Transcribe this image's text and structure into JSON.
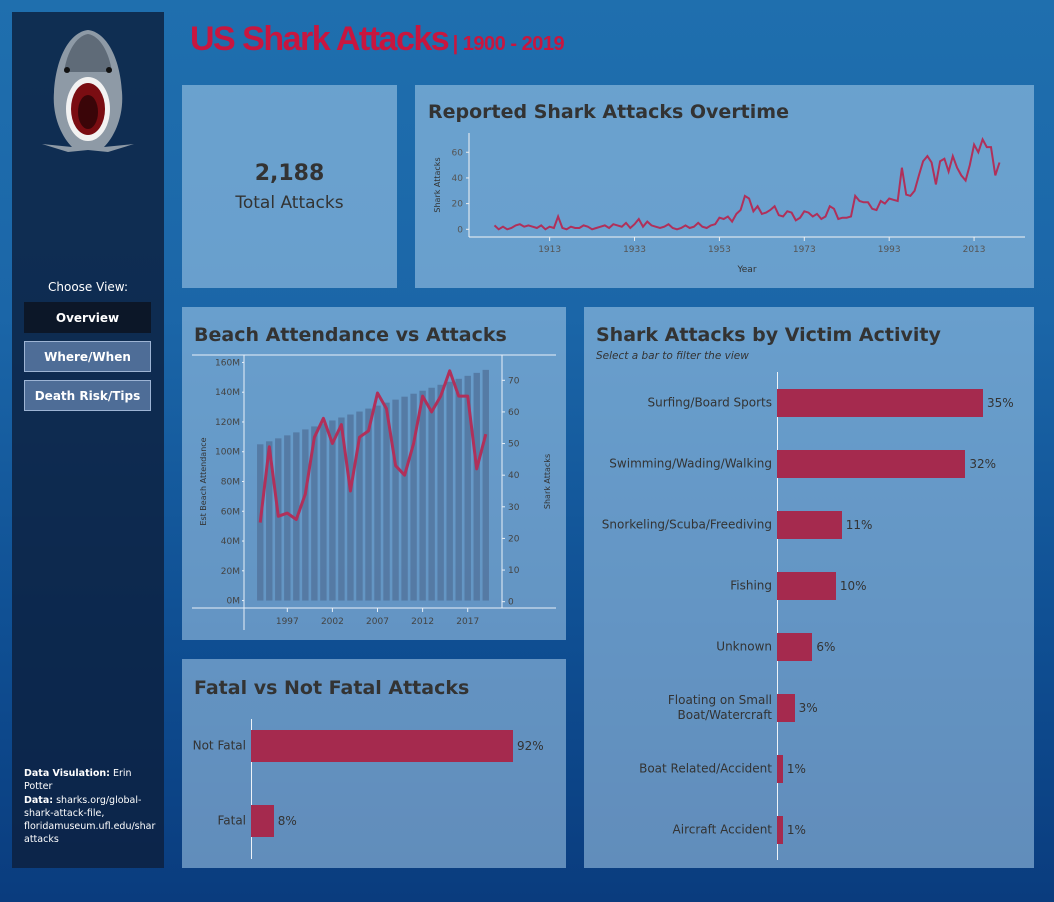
{
  "header": {
    "title": "US Shark Attacks",
    "subtitle": "| 1900 - 2019"
  },
  "sidebar": {
    "prompt": "Choose View:",
    "buttons": [
      "Overview",
      "Where/When",
      "Death Risk/Tips"
    ],
    "credits": [
      {
        "label": "Data Visulation:",
        "text": "Erin Potter"
      },
      {
        "label": "Data:",
        "text": "sharks.org/global-shark-attack-file, floridamuseum.ufl.edu/shar attacks"
      }
    ]
  },
  "kpi": {
    "value": "2,188",
    "label": "Total Attacks"
  },
  "chart_data": [
    {
      "type": "line",
      "title": "Reported Shark Attacks Overtime",
      "x_label": "Year",
      "y_label": "Shark Attacks",
      "x": [
        1900,
        1901,
        1902,
        1903,
        1904,
        1905,
        1906,
        1907,
        1908,
        1909,
        1910,
        1911,
        1912,
        1913,
        1914,
        1915,
        1916,
        1917,
        1918,
        1919,
        1920,
        1921,
        1922,
        1923,
        1924,
        1925,
        1926,
        1927,
        1928,
        1929,
        1930,
        1931,
        1932,
        1933,
        1934,
        1935,
        1936,
        1937,
        1938,
        1939,
        1940,
        1941,
        1942,
        1943,
        1944,
        1945,
        1946,
        1947,
        1948,
        1949,
        1950,
        1951,
        1952,
        1953,
        1954,
        1955,
        1956,
        1957,
        1958,
        1959,
        1960,
        1961,
        1962,
        1963,
        1964,
        1965,
        1966,
        1967,
        1968,
        1969,
        1970,
        1971,
        1972,
        1973,
        1974,
        1975,
        1976,
        1977,
        1978,
        1979,
        1980,
        1981,
        1982,
        1983,
        1984,
        1985,
        1986,
        1987,
        1988,
        1989,
        1990,
        1991,
        1992,
        1993,
        1994,
        1995,
        1996,
        1997,
        1998,
        1999,
        2000,
        2001,
        2002,
        2003,
        2004,
        2005,
        2006,
        2007,
        2008,
        2009,
        2010,
        2011,
        2012,
        2013,
        2014,
        2015,
        2016,
        2017,
        2018,
        2019
      ],
      "values": [
        3,
        0,
        2,
        0,
        1,
        3,
        4,
        2,
        3,
        2,
        1,
        3,
        0,
        2,
        1,
        10,
        1,
        0,
        2,
        1,
        1,
        3,
        2,
        0,
        1,
        2,
        3,
        1,
        4,
        3,
        2,
        5,
        1,
        4,
        8,
        2,
        6,
        3,
        2,
        1,
        2,
        4,
        1,
        0,
        1,
        3,
        1,
        2,
        5,
        2,
        1,
        3,
        4,
        9,
        8,
        10,
        6,
        12,
        15,
        26,
        24,
        14,
        18,
        12,
        13,
        15,
        18,
        11,
        10,
        14,
        13,
        7,
        9,
        14,
        13,
        10,
        12,
        8,
        10,
        18,
        16,
        8,
        9,
        9,
        10,
        26,
        22,
        21,
        21,
        16,
        15,
        22,
        20,
        24,
        23,
        22,
        48,
        27,
        26,
        30,
        42,
        53,
        57,
        52,
        35,
        53,
        55,
        45,
        57,
        48,
        42,
        38,
        50,
        66,
        60,
        70,
        64,
        64,
        42,
        52
      ],
      "color": "#b0305a",
      "xlim": [
        1894,
        2025
      ],
      "xticks": [
        1913,
        1933,
        1953,
        1973,
        1993,
        2013
      ],
      "ylim": [
        -6,
        75
      ],
      "yticks": [
        0,
        20,
        40,
        60
      ]
    },
    {
      "type": "combo",
      "title": "Beach Attendance vs Attacks",
      "y_label": "Est Beach Attendance",
      "y2_label": "Shark Attacks",
      "x": [
        1994,
        1995,
        1996,
        1997,
        1998,
        1999,
        2000,
        2001,
        2002,
        2003,
        2004,
        2005,
        2006,
        2007,
        2008,
        2009,
        2010,
        2011,
        2012,
        2013,
        2014,
        2015,
        2016,
        2017,
        2018,
        2019
      ],
      "series": [
        {
          "kind": "bar",
          "color": "#52769f",
          "values": [
            105000000,
            107000000,
            109000000,
            111000000,
            113000000,
            115000000,
            117000000,
            119000000,
            121000000,
            123000000,
            125000000,
            127000000,
            129000000,
            131000000,
            133000000,
            135000000,
            137000000,
            139000000,
            141000000,
            143000000,
            145000000,
            147000000,
            149000000,
            151000000,
            153000000,
            155000000
          ]
        },
        {
          "kind": "line",
          "axis": "y2",
          "color": "#b0305a",
          "values": [
            25,
            49,
            27,
            28,
            26,
            34,
            52,
            58,
            50,
            56,
            35,
            52,
            54,
            66,
            61,
            43,
            40,
            50,
            65,
            60,
            65,
            73,
            65,
            65,
            42,
            53
          ]
        }
      ],
      "xlim": [
        1992.2,
        2020.8
      ],
      "xticks": [
        1997,
        2002,
        2007,
        2012,
        2017
      ],
      "ylim": [
        -5000000,
        165000000
      ],
      "yticks": [
        {
          "value": 0,
          "label": "0M"
        },
        {
          "value": 20000000,
          "label": "20M"
        },
        {
          "value": 40000000,
          "label": "40M"
        },
        {
          "value": 60000000,
          "label": "60M"
        },
        {
          "value": 80000000,
          "label": "80M"
        },
        {
          "value": 100000000,
          "label": "100M"
        },
        {
          "value": 120000000,
          "label": "120M"
        },
        {
          "value": 140000000,
          "label": "140M"
        },
        {
          "value": 160000000,
          "label": "160M"
        }
      ],
      "y2lim": [
        -2,
        78
      ],
      "y2ticks": [
        0,
        10,
        20,
        30,
        40,
        50,
        60,
        70
      ]
    },
    {
      "type": "hbar",
      "title": "Fatal vs Not Fatal Attacks",
      "categories": [
        "Not Fatal",
        "Fatal"
      ],
      "values": [
        92,
        8
      ],
      "value_labels": [
        "92%",
        "8%"
      ],
      "color": "#a52a4e"
    },
    {
      "type": "hbar",
      "title": "Shark Attacks by Victim Activity",
      "subtitle": "Select a bar to filter the view",
      "categories": [
        "Surfing/Board Sports",
        "Swimming/Wading/Walking",
        "Snorkeling/Scuba/Freediving",
        "Fishing",
        "Unknown",
        "Floating on Small Boat/Watercraft",
        "Boat Related/Accident",
        "Aircraft Accident"
      ],
      "values": [
        35,
        32,
        11,
        10,
        6,
        3,
        1,
        1
      ],
      "value_labels": [
        "35%",
        "32%",
        "11%",
        "10%",
        "6%",
        "3%",
        "1%",
        "1%"
      ],
      "color": "#a52a4e"
    }
  ]
}
